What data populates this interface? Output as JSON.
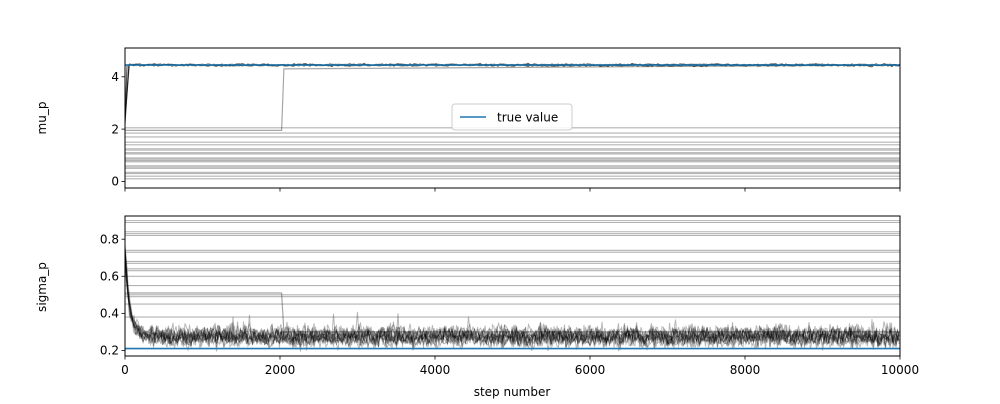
{
  "chart_data": [
    {
      "type": "line",
      "ylabel": "mu_p",
      "xlim": [
        0,
        10000
      ],
      "ylim": [
        -0.25,
        5.1
      ],
      "yticks": [
        0,
        2,
        4
      ],
      "ytick_labels": [
        "0",
        "2",
        "4"
      ],
      "x_ticks_labeled": false,
      "grid": false,
      "legend": {
        "entries": [
          "true value"
        ],
        "placement": "center"
      },
      "true_value": 4.45,
      "series": [
        {
          "name": "true value",
          "role": "true-value",
          "color": "#1f77b4",
          "x": [
            0,
            10000
          ],
          "y": [
            4.45,
            4.45
          ]
        },
        {
          "role": "walker-converged",
          "color": "#000000",
          "x": [
            0,
            40,
            10000
          ],
          "y": [
            2.3,
            4.45,
            4.45
          ]
        },
        {
          "role": "walker-late-jump",
          "color": "#000000",
          "x": [
            0,
            2020,
            2050,
            10000
          ],
          "y": [
            1.95,
            1.95,
            4.3,
            4.45
          ]
        },
        {
          "role": "walker-stuck",
          "color": "#000000",
          "y_levels": [
            0.1,
            0.2,
            0.3,
            0.35,
            0.5,
            0.55,
            0.6,
            0.75,
            0.8,
            0.85,
            0.9,
            1.05,
            1.1,
            1.2,
            1.25,
            1.4,
            1.5,
            1.7,
            1.85,
            2.05
          ]
        }
      ]
    },
    {
      "type": "line",
      "xlabel": "step number",
      "ylabel": "sigma_p",
      "xlim": [
        0,
        10000
      ],
      "ylim": [
        0.17,
        0.925
      ],
      "xticks": [
        0,
        2000,
        4000,
        6000,
        8000,
        10000
      ],
      "xtick_labels": [
        "0",
        "2000",
        "4000",
        "6000",
        "8000",
        "10000"
      ],
      "yticks": [
        0.2,
        0.4,
        0.6,
        0.8
      ],
      "ytick_labels": [
        "0.2",
        "0.4",
        "0.6",
        "0.8"
      ],
      "grid": false,
      "true_value": 0.21,
      "series": [
        {
          "name": "true value",
          "role": "true-value",
          "color": "#1f77b4",
          "x": [
            0,
            10000
          ],
          "y": [
            0.21,
            0.21
          ]
        },
        {
          "role": "walker-converged",
          "color": "#000000",
          "band": [
            0.2,
            0.35
          ],
          "start_value": 0.83
        },
        {
          "role": "walker-late-jump",
          "color": "#000000",
          "x": [
            0,
            2020,
            2050,
            10000
          ],
          "y": [
            0.51,
            0.51,
            0.3,
            0.3
          ]
        },
        {
          "role": "walker-stuck",
          "color": "#000000",
          "y_levels": [
            0.38,
            0.45,
            0.49,
            0.5,
            0.55,
            0.6,
            0.63,
            0.64,
            0.67,
            0.68,
            0.73,
            0.74,
            0.82,
            0.83,
            0.84,
            0.89,
            0.9
          ]
        }
      ]
    }
  ]
}
